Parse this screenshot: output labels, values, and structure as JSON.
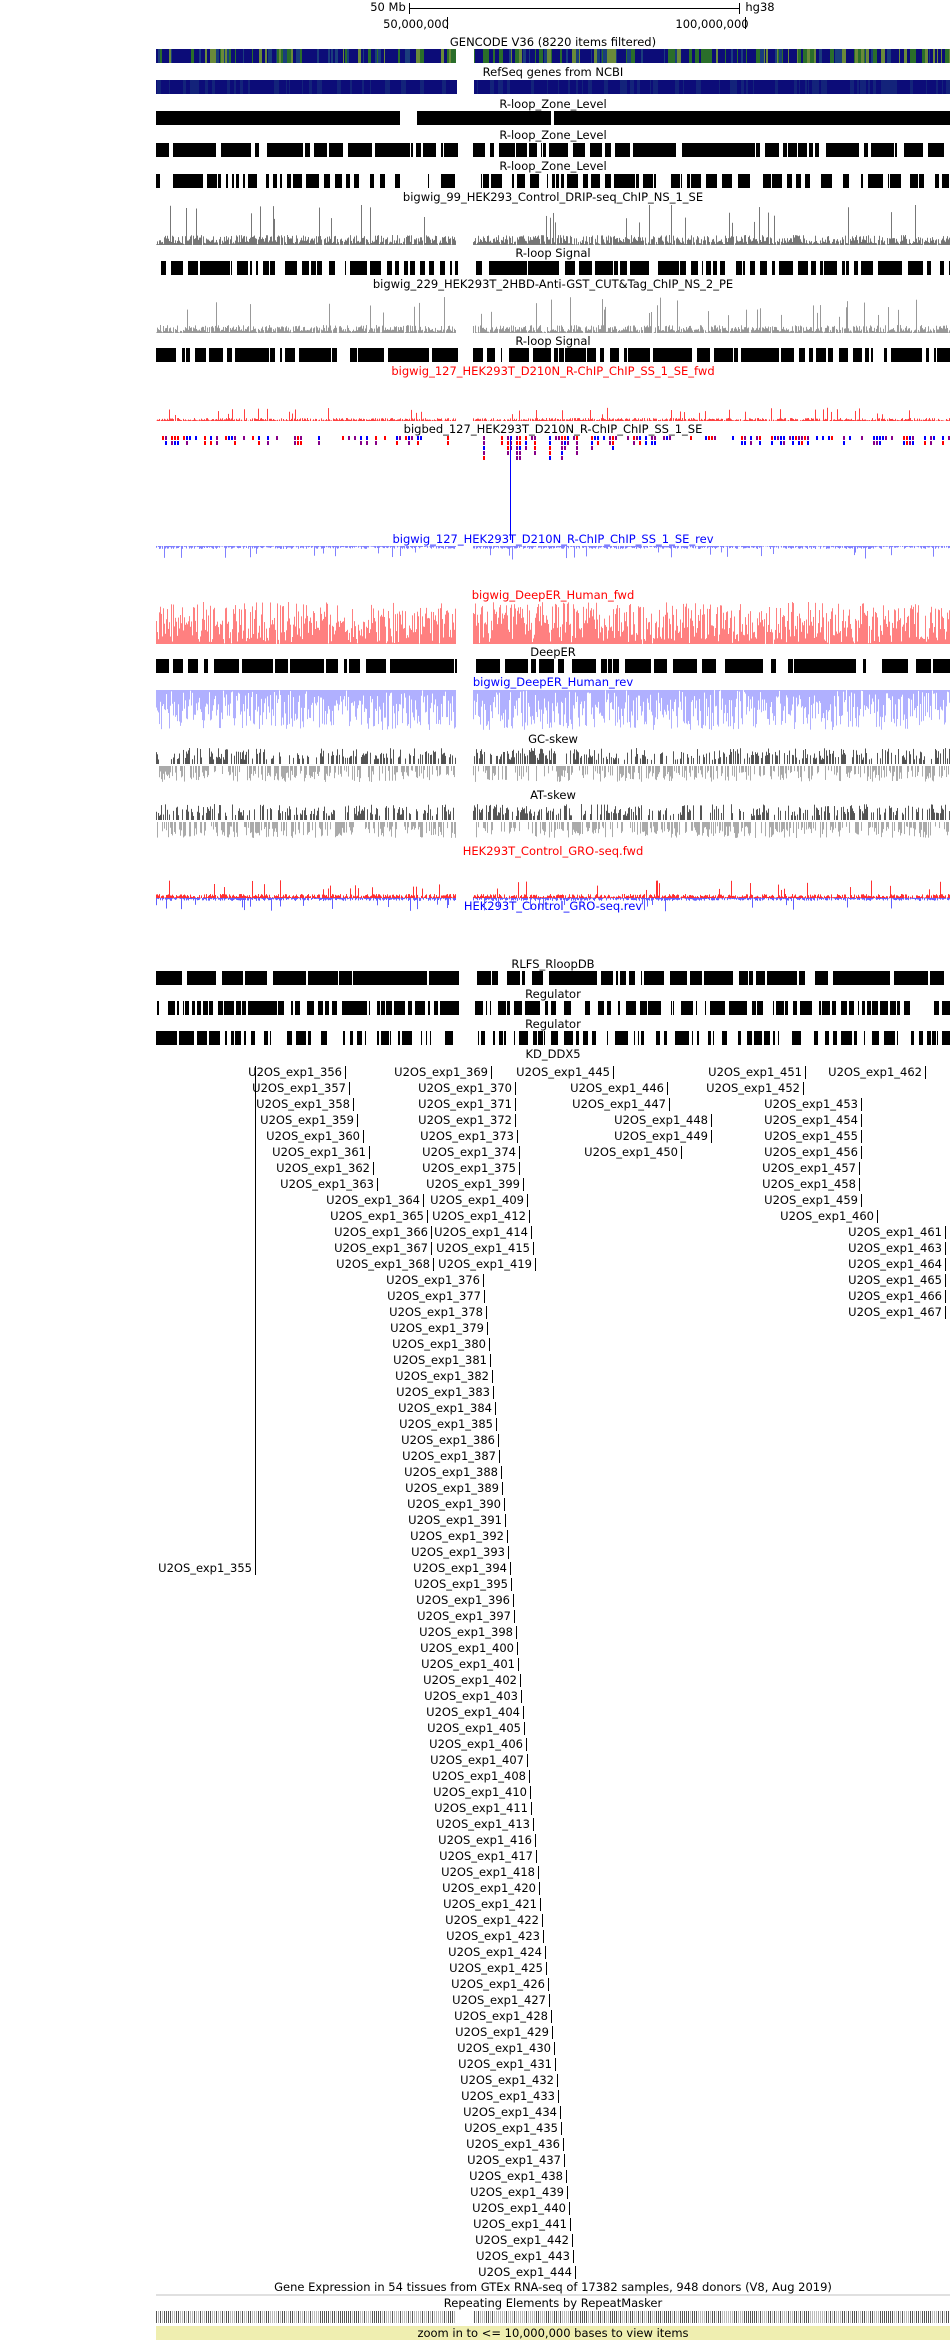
{
  "ruler": {
    "scale_label": "50 Mb",
    "assembly": "hg38",
    "tick_50": "50,000,000",
    "tick_100": "100,000,000"
  },
  "tracks": {
    "gencode": "GENCODE V36 (8220 items filtered)",
    "refseq": "RefSeq genes from NCBI",
    "rloop_zone_1": "R-loop_Zone_Level",
    "rloop_zone_2": "R-loop_Zone_Level",
    "rloop_zone_3": "R-loop_Zone_Level",
    "drip_signal": "bigwig_99_HEK293_Control_DRIP-seq_ChIP_NS_1_SE",
    "rloop_signal_1": "R-loop Signal",
    "cuttag_signal": "bigwig_229_HEK293T_2HBD-Anti-GST_CUT&Tag_ChIP_NS_2_PE",
    "rloop_signal_2": "R-loop Signal",
    "rchip_fwd": "bigwig_127_HEK293T_D210N_R-ChIP_ChIP_SS_1_SE_fwd",
    "rchip_bed": "bigbed_127_HEK293T_D210N_R-ChIP_ChIP_SS_1_SE",
    "rchip_rev": "bigwig_127_HEK293T_D210N_R-ChIP_ChIP_SS_1_SE_rev",
    "deeper_fwd": "bigwig_DeepER_Human_fwd",
    "deeper": "DeepER",
    "deeper_rev": "bigwig_DeepER_Human_rev",
    "gc_skew": "GC-skew",
    "at_skew": "AT-skew",
    "gro_fwd": "HEK293T_Control_GRO-seq.fwd",
    "gro_rev": "HEK293T_Control_GRO-seq.rev",
    "rlfs": "RLFS_RloopDB",
    "regulator_1": "Regulator",
    "regulator_2": "Regulator",
    "kd_ddx5": "KD_DDX5",
    "gtex": "Gene Expression in 54 tissues from GTEx RNA-seq of 17382 samples, 948 donors (V8, Aug 2019)",
    "repeatmasker": "Repeating Elements by RepeatMasker"
  },
  "zoom_message": "zoom in to <= 10,000,000 bases to view items",
  "colors": {
    "gencode": "#0c0c78",
    "red_signal": "#ff0000",
    "blue_signal": "#0000ff",
    "zoom_bg": "#efeeb0"
  },
  "kd_features": [
    "U2OS_exp1_355",
    "U2OS_exp1_356",
    "U2OS_exp1_357",
    "U2OS_exp1_358",
    "U2OS_exp1_359",
    "U2OS_exp1_360",
    "U2OS_exp1_361",
    "U2OS_exp1_362",
    "U2OS_exp1_363",
    "U2OS_exp1_364",
    "U2OS_exp1_365",
    "U2OS_exp1_366",
    "U2OS_exp1_367",
    "U2OS_exp1_368",
    "U2OS_exp1_369",
    "U2OS_exp1_370",
    "U2OS_exp1_371",
    "U2OS_exp1_372",
    "U2OS_exp1_373",
    "U2OS_exp1_374",
    "U2OS_exp1_375",
    "U2OS_exp1_376",
    "U2OS_exp1_377",
    "U2OS_exp1_378",
    "U2OS_exp1_379",
    "U2OS_exp1_380",
    "U2OS_exp1_381",
    "U2OS_exp1_382",
    "U2OS_exp1_383",
    "U2OS_exp1_384",
    "U2OS_exp1_385",
    "U2OS_exp1_386",
    "U2OS_exp1_387",
    "U2OS_exp1_388",
    "U2OS_exp1_389",
    "U2OS_exp1_390",
    "U2OS_exp1_391",
    "U2OS_exp1_392",
    "U2OS_exp1_393",
    "U2OS_exp1_394",
    "U2OS_exp1_395",
    "U2OS_exp1_396",
    "U2OS_exp1_397",
    "U2OS_exp1_398",
    "U2OS_exp1_399",
    "U2OS_exp1_400",
    "U2OS_exp1_401",
    "U2OS_exp1_402",
    "U2OS_exp1_403",
    "U2OS_exp1_404",
    "U2OS_exp1_405",
    "U2OS_exp1_406",
    "U2OS_exp1_407",
    "U2OS_exp1_408",
    "U2OS_exp1_409",
    "U2OS_exp1_410",
    "U2OS_exp1_411",
    "U2OS_exp1_412",
    "U2OS_exp1_413",
    "U2OS_exp1_414",
    "U2OS_exp1_415",
    "U2OS_exp1_416",
    "U2OS_exp1_417",
    "U2OS_exp1_418",
    "U2OS_exp1_419",
    "U2OS_exp1_420",
    "U2OS_exp1_421",
    "U2OS_exp1_422",
    "U2OS_exp1_423",
    "U2OS_exp1_424",
    "U2OS_exp1_425",
    "U2OS_exp1_426",
    "U2OS_exp1_427",
    "U2OS_exp1_428",
    "U2OS_exp1_429",
    "U2OS_exp1_430",
    "U2OS_exp1_431",
    "U2OS_exp1_432",
    "U2OS_exp1_433",
    "U2OS_exp1_434",
    "U2OS_exp1_435",
    "U2OS_exp1_436",
    "U2OS_exp1_437",
    "U2OS_exp1_438",
    "U2OS_exp1_439",
    "U2OS_exp1_440",
    "U2OS_exp1_441",
    "U2OS_exp1_442",
    "U2OS_exp1_443",
    "U2OS_exp1_444",
    "U2OS_exp1_445",
    "U2OS_exp1_446",
    "U2OS_exp1_447",
    "U2OS_exp1_448",
    "U2OS_exp1_449",
    "U2OS_exp1_450",
    "U2OS_exp1_451",
    "U2OS_exp1_452",
    "U2OS_exp1_453",
    "U2OS_exp1_454",
    "U2OS_exp1_455",
    "U2OS_exp1_456",
    "U2OS_exp1_457",
    "U2OS_exp1_458",
    "U2OS_exp1_459",
    "U2OS_exp1_460",
    "U2OS_exp1_461",
    "U2OS_exp1_462",
    "U2OS_exp1_463",
    "U2OS_exp1_464",
    "U2OS_exp1_465",
    "U2OS_exp1_466",
    "U2OS_exp1_467"
  ]
}
